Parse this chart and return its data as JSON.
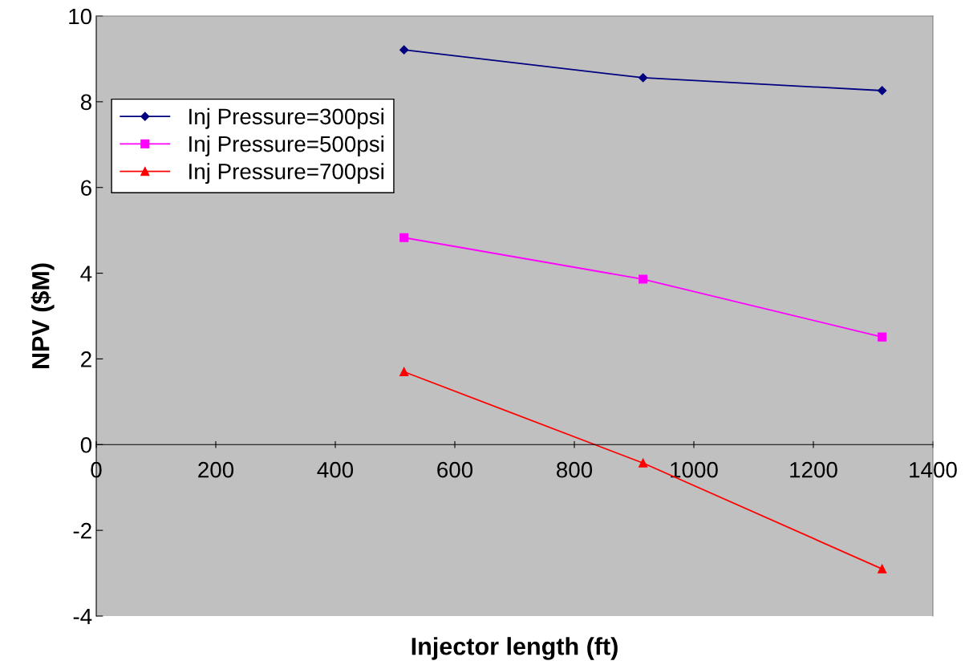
{
  "chart_data": {
    "type": "line",
    "xlabel": "Injector length (ft)",
    "ylabel": "NPV ($M)",
    "xlim": [
      0,
      1400
    ],
    "xticks": [
      0,
      200,
      400,
      600,
      800,
      1000,
      1200,
      1400
    ],
    "ylim": [
      -4,
      10
    ],
    "yticks": [
      -4,
      -2,
      0,
      2,
      4,
      6,
      8,
      10
    ],
    "x": [
      515,
      915,
      1315
    ],
    "series": [
      {
        "name": "Inj Pressure=300psi",
        "color": "#000080",
        "marker": "diamond",
        "values": [
          9.21,
          8.56,
          8.26
        ]
      },
      {
        "name": "Inj Pressure=500psi",
        "color": "#ff00ff",
        "marker": "square",
        "values": [
          4.83,
          3.86,
          2.51
        ]
      },
      {
        "name": "Inj Pressure=700psi",
        "color": "#ff0000",
        "marker": "triangle",
        "values": [
          1.7,
          -0.43,
          -2.9
        ]
      }
    ],
    "grid": false,
    "legend": "top left",
    "line_style": "solid"
  }
}
